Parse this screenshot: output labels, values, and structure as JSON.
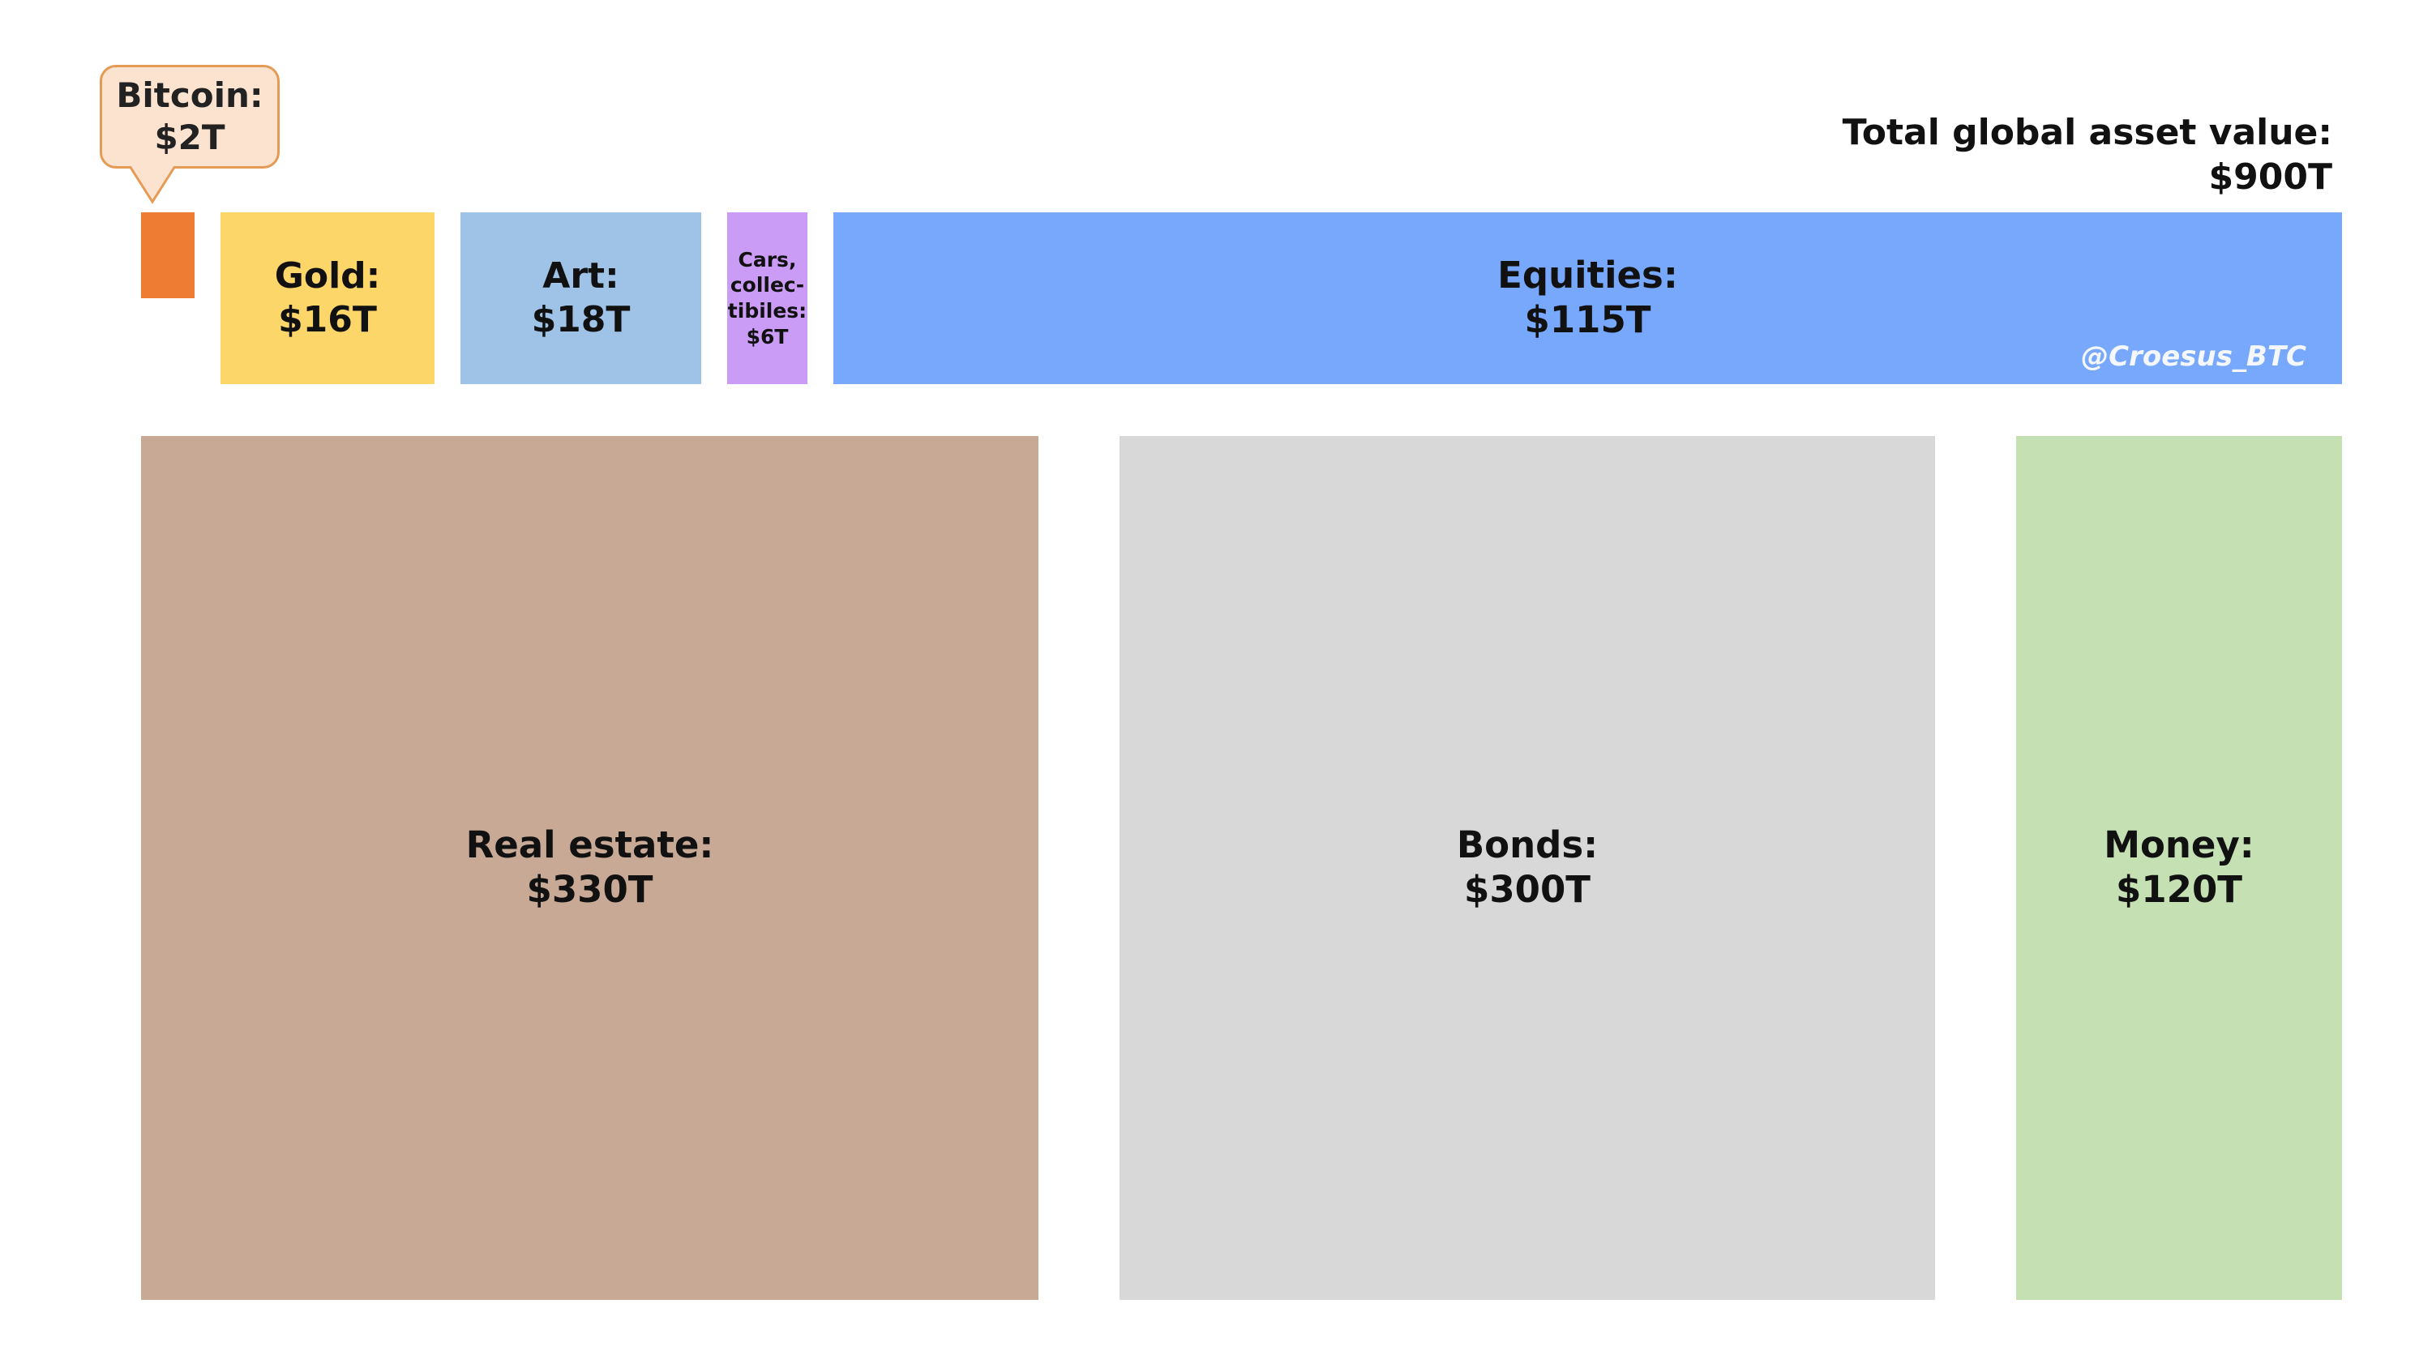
{
  "chart_data": {
    "type": "treemap",
    "unit": "T",
    "total": {
      "label": "Total global asset value:",
      "value_text": "$900T",
      "value": 900
    },
    "items": [
      {
        "key": "bitcoin",
        "label": "Bitcoin:",
        "value_text": "$2T",
        "value": 2,
        "color": "#ef7c33",
        "callout": true
      },
      {
        "key": "gold",
        "label": "Gold:",
        "value_text": "$16T",
        "value": 16,
        "color": "#fdd66a"
      },
      {
        "key": "art",
        "label": "Art:",
        "value_text": "$18T",
        "value": 18,
        "color": "#9fc3e7"
      },
      {
        "key": "cars",
        "label": "Cars,\ncollec-\ntibiles:",
        "value_text": "$6T",
        "value": 6,
        "color": "#cb9cf6"
      },
      {
        "key": "equities",
        "label": "Equities:",
        "value_text": "$115T",
        "value": 115,
        "color": "#78a8fc"
      },
      {
        "key": "real_estate",
        "label": "Real estate:",
        "value_text": "$330T",
        "value": 330,
        "color": "#c8a995"
      },
      {
        "key": "bonds",
        "label": "Bonds:",
        "value_text": "$300T",
        "value": 300,
        "color": "#d8d8d8"
      },
      {
        "key": "money",
        "label": "Money:",
        "value_text": "$120T",
        "value": 120,
        "color": "#c5e0b3"
      }
    ],
    "watermark": "@Croesus_BTC"
  }
}
